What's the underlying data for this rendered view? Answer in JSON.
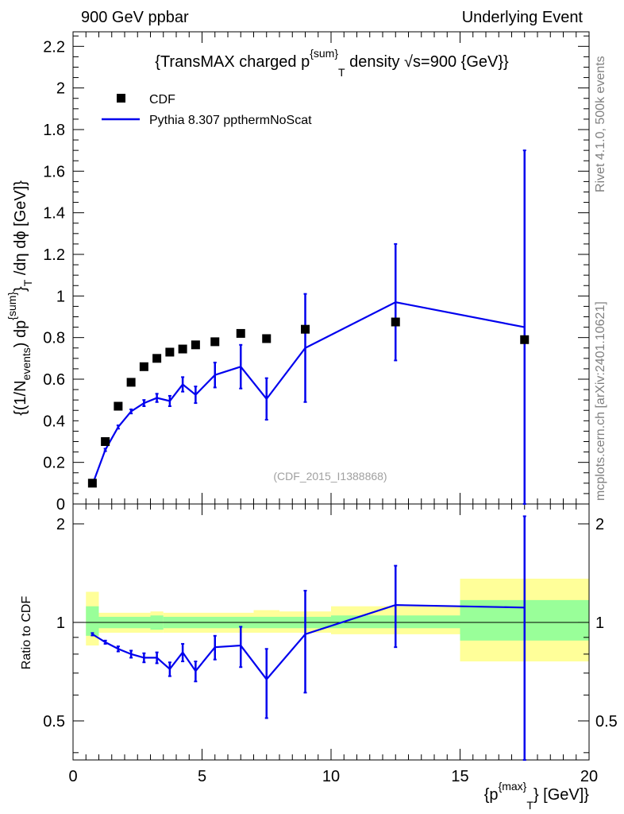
{
  "header": {
    "left": "900 GeV ppbar",
    "right": "Underlying Event"
  },
  "side_text": {
    "top": "Rivet 4.1.0,  500k events",
    "bottom": "mcplots.cern.ch [arXiv:2401.10621]"
  },
  "watermark": "(CDF_2015_I1388868)",
  "colors": {
    "cdf": "#000000",
    "pythia": "#0000ee",
    "band_inner": "#99ff99",
    "band_outer": "#ffff99"
  },
  "chart_data": [
    {
      "type": "scatter",
      "title_parts": {
        "pre": "{TransMAX charged p",
        "sup": "{sum}",
        "sub": "T",
        "post": " density √s=900 {GeV}}"
      },
      "ylabel_parts": [
        "{(1/N",
        "events",
        ") dp",
        "{sum}",
        "}",
        "T",
        " /dη  dϕ [GeV]}"
      ],
      "ylim": [
        0,
        2.27
      ],
      "yticks": [
        0,
        0.2,
        0.4,
        0.6,
        0.8,
        1,
        1.2,
        1.4,
        1.6,
        1.8,
        2,
        2.2
      ],
      "ytick_labels": [
        "0",
        "0.2",
        "0.4",
        "0.6",
        "0.8",
        "1",
        "1.2",
        "1.4",
        "1.6",
        "1.8",
        "2",
        "2.2"
      ],
      "legend": [
        "CDF",
        "Pythia 8.307 ppthermNoScat"
      ],
      "legend_position": "top-left",
      "series": [
        {
          "name": "CDF",
          "x": [
            0.75,
            1.25,
            1.75,
            2.25,
            2.75,
            3.25,
            3.75,
            4.25,
            4.75,
            5.5,
            6.5,
            7.5,
            9.0,
            12.5,
            17.5
          ],
          "y": [
            0.1,
            0.3,
            0.47,
            0.585,
            0.66,
            0.7,
            0.73,
            0.745,
            0.765,
            0.78,
            0.82,
            0.795,
            0.84,
            0.875,
            0.79
          ]
        },
        {
          "name": "Pythia 8.307 ppthermNoScat",
          "x": [
            0.75,
            1.25,
            1.75,
            2.25,
            2.75,
            3.25,
            3.75,
            4.25,
            4.75,
            5.5,
            6.5,
            7.5,
            9.0,
            12.5,
            17.5
          ],
          "y": [
            0.092,
            0.26,
            0.37,
            0.445,
            0.485,
            0.51,
            0.495,
            0.575,
            0.525,
            0.62,
            0.66,
            0.505,
            0.75,
            0.97,
            0.85
          ],
          "yerr": [
            0.004,
            0.006,
            0.008,
            0.01,
            0.015,
            0.02,
            0.025,
            0.035,
            0.04,
            0.06,
            0.105,
            0.1,
            0.26,
            0.28,
            0.85
          ]
        }
      ]
    },
    {
      "type": "line",
      "ylabel": "Ratio to CDF",
      "ylim": [
        0.38,
        2.3
      ],
      "yscale": "log",
      "yticks": [
        0.5,
        1,
        2
      ],
      "ytick_labels": [
        "0.5",
        "1",
        "2"
      ],
      "xlabel_parts": {
        "pre": "{p",
        "sup": "{max}",
        "sub": "T",
        "post": "} [GeV]}"
      },
      "xlim": [
        0,
        20
      ],
      "xticks": [
        0,
        5,
        10,
        15,
        20
      ],
      "xtick_labels": [
        "0",
        "5",
        "10",
        "15",
        "20"
      ],
      "bands": [
        {
          "x0": 0.5,
          "x1": 1.0,
          "inner": [
            0.91,
            1.12
          ],
          "outer": [
            0.85,
            1.24
          ]
        },
        {
          "x0": 1.0,
          "x1": 3.0,
          "inner": [
            0.96,
            1.04
          ],
          "outer": [
            0.93,
            1.07
          ]
        },
        {
          "x0": 3.0,
          "x1": 3.5,
          "inner": [
            0.95,
            1.05
          ],
          "outer": [
            0.93,
            1.08
          ]
        },
        {
          "x0": 3.5,
          "x1": 7.0,
          "inner": [
            0.96,
            1.04
          ],
          "outer": [
            0.93,
            1.07
          ]
        },
        {
          "x0": 7.0,
          "x1": 8.0,
          "inner": [
            0.96,
            1.04
          ],
          "outer": [
            0.93,
            1.09
          ]
        },
        {
          "x0": 8.0,
          "x1": 10.0,
          "inner": [
            0.96,
            1.04
          ],
          "outer": [
            0.93,
            1.08
          ]
        },
        {
          "x0": 10.0,
          "x1": 15.0,
          "inner": [
            0.96,
            1.05
          ],
          "outer": [
            0.92,
            1.12
          ]
        },
        {
          "x0": 15.0,
          "x1": 20.0,
          "inner": [
            0.88,
            1.17
          ],
          "outer": [
            0.76,
            1.36
          ]
        }
      ],
      "series": [
        {
          "name": "Pythia 8.307 ppthermNoScat / CDF",
          "x": [
            0.75,
            1.25,
            1.75,
            2.25,
            2.75,
            3.25,
            3.75,
            4.25,
            4.75,
            5.5,
            6.5,
            7.5,
            9.0,
            12.5,
            17.5
          ],
          "y": [
            0.92,
            0.87,
            0.83,
            0.8,
            0.78,
            0.78,
            0.72,
            0.81,
            0.71,
            0.84,
            0.85,
            0.67,
            0.92,
            1.13,
            1.11
          ],
          "err_lo": [
            0.008,
            0.01,
            0.015,
            0.02,
            0.025,
            0.03,
            0.035,
            0.05,
            0.05,
            0.07,
            0.12,
            0.16,
            0.31,
            0.29,
            0.95
          ],
          "err_hi": [
            0.008,
            0.01,
            0.015,
            0.02,
            0.025,
            0.03,
            0.035,
            0.05,
            0.05,
            0.07,
            0.12,
            0.16,
            0.33,
            0.36,
            1.0
          ]
        }
      ]
    }
  ]
}
